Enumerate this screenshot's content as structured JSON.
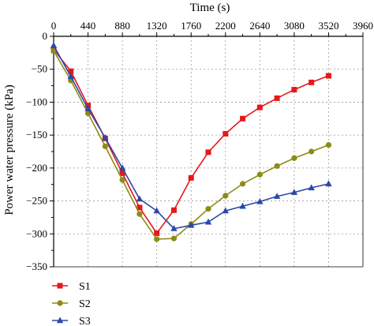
{
  "chart_data": {
    "type": "line",
    "xlabel": "Time (s)",
    "ylabel": "Power water pressure (kPa)",
    "xlim": [
      0,
      3960
    ],
    "ylim": [
      -350,
      0
    ],
    "x_ticks": [
      0,
      440,
      880,
      1320,
      1760,
      2200,
      2640,
      3080,
      3520,
      3960
    ],
    "y_ticks": [
      0,
      -50,
      -100,
      -150,
      -200,
      -250,
      -300,
      -350
    ],
    "x_axis_position": "top",
    "grid": true,
    "legend_position": "bottom-left",
    "series": [
      {
        "name": "S1",
        "color": "#e8171b",
        "marker": "square",
        "x": [
          0,
          220,
          440,
          660,
          880,
          1100,
          1320,
          1540,
          1760,
          1980,
          2200,
          2420,
          2640,
          2860,
          3080,
          3300,
          3520
        ],
        "y": [
          -20,
          -53,
          -105,
          -155,
          -208,
          -260,
          -299,
          -264,
          -215,
          -176,
          -148,
          -125,
          -108,
          -94,
          -81,
          -70,
          -60
        ]
      },
      {
        "name": "S2",
        "color": "#8c8c16",
        "marker": "circle",
        "x": [
          0,
          220,
          440,
          660,
          880,
          1100,
          1320,
          1540,
          1760,
          1980,
          2200,
          2420,
          2640,
          2860,
          3080,
          3300,
          3520
        ],
        "y": [
          -22,
          -67,
          -117,
          -167,
          -218,
          -270,
          -308,
          -307,
          -285,
          -262,
          -242,
          -224,
          -210,
          -197,
          -185,
          -175,
          -165
        ]
      },
      {
        "name": "S3",
        "color": "#2a48a8",
        "marker": "triangle",
        "x": [
          0,
          220,
          440,
          660,
          880,
          1100,
          1320,
          1540,
          1760,
          1980,
          2200,
          2420,
          2640,
          2860,
          3080,
          3300,
          3520
        ],
        "y": [
          -14,
          -61,
          -110,
          -154,
          -200,
          -247,
          -265,
          -292,
          -287,
          -282,
          -265,
          -258,
          -251,
          -243,
          -237,
          -230,
          -224
        ]
      }
    ]
  }
}
